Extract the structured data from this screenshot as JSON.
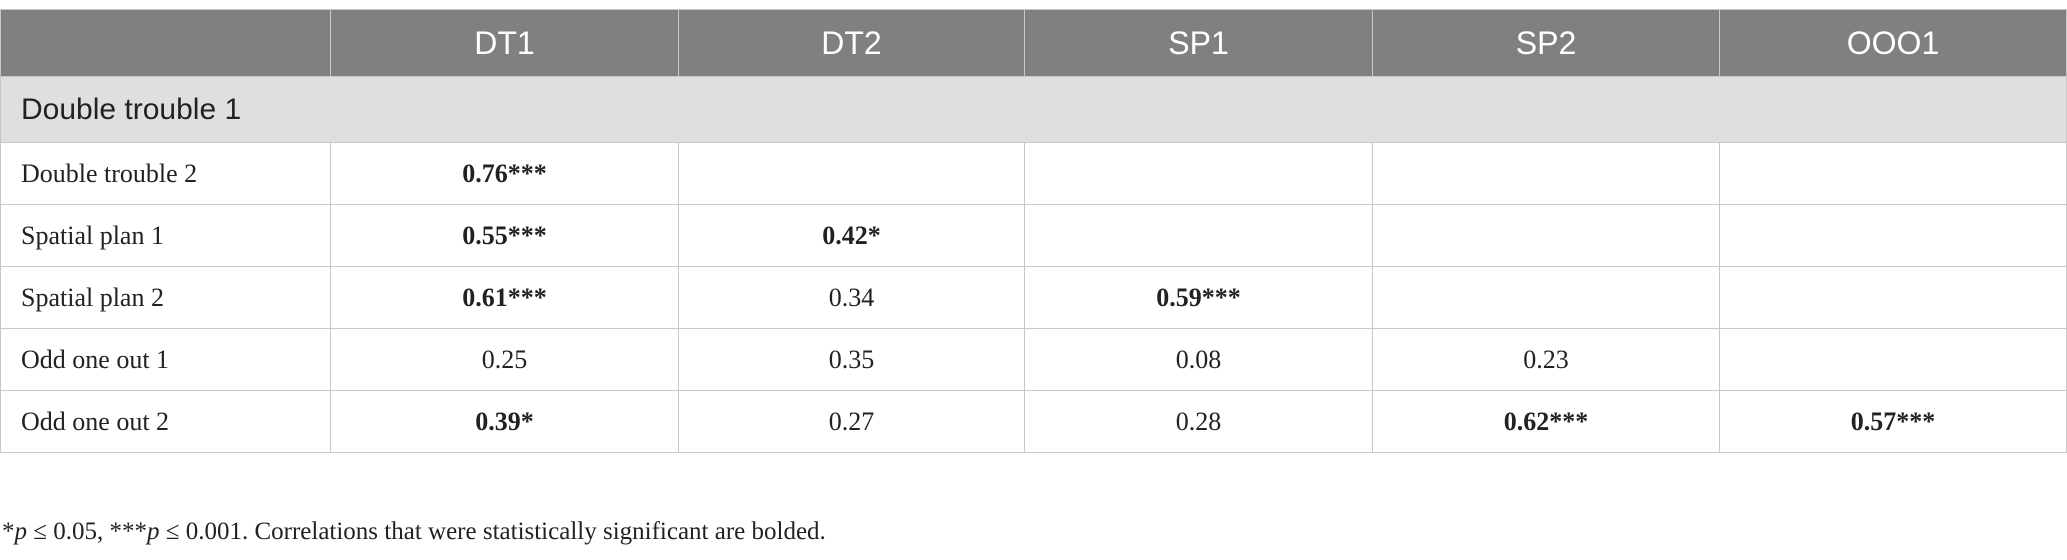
{
  "table": {
    "columns": [
      "DT1",
      "DT2",
      "SP1",
      "SP2",
      "OOO1"
    ],
    "section": "Double trouble 1",
    "rows": [
      {
        "label": "Double trouble 2",
        "cells": [
          {
            "text": "0.76***",
            "bold": true
          },
          null,
          null,
          null,
          null
        ]
      },
      {
        "label": "Spatial plan 1",
        "cells": [
          {
            "text": "0.55***",
            "bold": true
          },
          {
            "text": "0.42*",
            "bold": true
          },
          null,
          null,
          null
        ]
      },
      {
        "label": "Spatial plan 2",
        "cells": [
          {
            "text": "0.61***",
            "bold": true
          },
          {
            "text": "0.34",
            "bold": false
          },
          {
            "text": "0.59***",
            "bold": true
          },
          null,
          null
        ]
      },
      {
        "label": "Odd one out 1",
        "cells": [
          {
            "text": "0.25",
            "bold": false
          },
          {
            "text": "0.35",
            "bold": false
          },
          {
            "text": "0.08",
            "bold": false
          },
          {
            "text": "0.23",
            "bold": false
          },
          null
        ]
      },
      {
        "label": "Odd one out 2",
        "cells": [
          {
            "text": "0.39*",
            "bold": true
          },
          {
            "text": "0.27",
            "bold": false
          },
          {
            "text": "0.28",
            "bold": false
          },
          {
            "text": "0.62***",
            "bold": true
          },
          {
            "text": "0.57***",
            "bold": true
          }
        ]
      }
    ]
  },
  "footnote": {
    "parts": [
      "*",
      "p",
      " ≤ 0.05, ***",
      "p",
      " ≤ 0.001. Correlations that were statistically significant are bolded."
    ],
    "italic": [
      false,
      true,
      false,
      true,
      false
    ]
  }
}
